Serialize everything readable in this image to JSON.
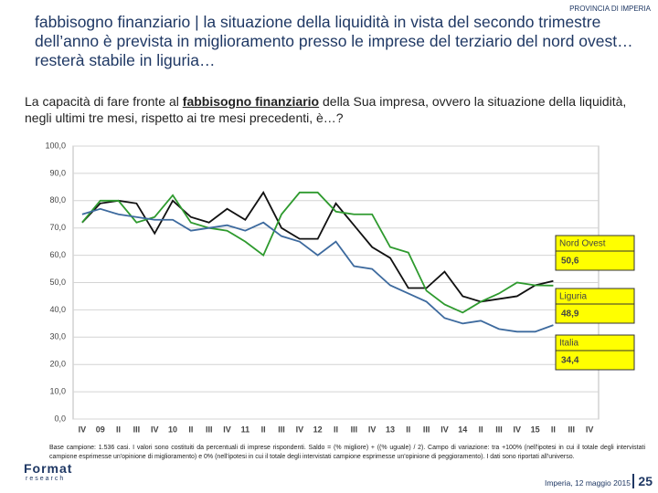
{
  "header": "PROVINCIA DI IMPERIA",
  "title": "fabbisogno finanziario | la situazione della liquidità in vista del secondo trimestre dell’anno è prevista in miglioramento presso le imprese del terziario del nord ovest… resterà stabile in liguria…",
  "question": [
    "La capacità di fare fronte al ",
    "fabbisogno finanziario",
    " della Sua impresa, ovvero la situazione della liquidità, negli ultimi tre mesi, rispetto ai tre mesi precedenti, è…?"
  ],
  "chart_data": {
    "type": "line",
    "categories": [
      "IV",
      "09",
      "II",
      "III",
      "IV",
      "10",
      "II",
      "III",
      "IV",
      "11",
      "II",
      "III",
      "IV",
      "12",
      "II",
      "III",
      "IV",
      "13",
      "II",
      "III",
      "IV",
      "14",
      "II",
      "III",
      "IV",
      "15",
      "II",
      "III",
      "IV"
    ],
    "ylim": [
      0,
      100
    ],
    "yticks": [
      {
        "value": 0,
        "label": "0,0"
      },
      {
        "value": 10,
        "label": "10,0"
      },
      {
        "value": 20,
        "label": "20,0"
      },
      {
        "value": 30,
        "label": "30,0"
      },
      {
        "value": 40,
        "label": "40,0"
      },
      {
        "value": 50,
        "label": "50,0"
      },
      {
        "value": 60,
        "label": "60,0"
      },
      {
        "value": 70,
        "label": "70,0"
      },
      {
        "value": 80,
        "label": "80,0"
      },
      {
        "value": 90,
        "label": "90,0"
      },
      {
        "value": 100,
        "label": "100,0"
      }
    ],
    "grid": true,
    "series": [
      {
        "name": "Nord Ovest",
        "color": "#111111",
        "values": [
          72,
          79,
          80,
          79,
          68,
          80,
          74,
          72,
          77,
          73,
          83,
          70,
          66,
          66,
          79,
          71,
          63,
          59,
          48,
          48,
          54,
          45,
          43,
          44,
          45,
          49,
          50.6,
          null,
          null
        ],
        "value_labels": [
          null,
          null,
          null,
          null,
          null,
          null,
          null,
          null,
          null,
          null,
          null,
          null,
          null,
          null,
          null,
          null,
          null,
          null,
          null,
          null,
          null,
          null,
          null,
          null,
          null,
          null,
          "50,6",
          null,
          null
        ]
      },
      {
        "name": "Liguria",
        "color": "#2e9a2e",
        "values": [
          72,
          80,
          80,
          72,
          74,
          82,
          72,
          70,
          69,
          65,
          60,
          75,
          83,
          83,
          76,
          75,
          75,
          63,
          61,
          47,
          42,
          39,
          43,
          46,
          50,
          49,
          48.9,
          null,
          null
        ],
        "value_labels": [
          null,
          null,
          null,
          null,
          null,
          null,
          null,
          null,
          null,
          null,
          null,
          null,
          null,
          null,
          null,
          null,
          null,
          null,
          null,
          null,
          null,
          null,
          null,
          null,
          null,
          null,
          "48,9",
          null,
          null
        ]
      },
      {
        "name": "Italia",
        "color": "#3d6a9e",
        "values": [
          75,
          77,
          75,
          74,
          73,
          73,
          69,
          70,
          71,
          69,
          72,
          67,
          65,
          60,
          65,
          56,
          55,
          49,
          46,
          43,
          37,
          35,
          36,
          33,
          32,
          32,
          34.4,
          null,
          null
        ],
        "value_labels": [
          null,
          null,
          null,
          null,
          null,
          null,
          null,
          null,
          null,
          null,
          null,
          null,
          null,
          null,
          null,
          null,
          null,
          null,
          null,
          null,
          null,
          null,
          null,
          null,
          null,
          null,
          "34,4",
          null,
          null
        ]
      }
    ]
  },
  "footnote": "Base campione: 1.536 casi. I valori sono costituiti da percentuali di imprese rispondenti. Saldo = (% migliore) + ((% uguale) / 2). Campo di variazione: tra +100% (nell'ipotesi in cui il totale degli intervistati campione esprimesse un'opinione di miglioramento) e 0% (nell'ipotesi in cui il totale degli intervistati campione esprimesse un'opinione di peggioramento). I dati sono riportati all'universo.",
  "footer": {
    "date": "Imperia, 12 maggio 2015",
    "page": "25",
    "logo": [
      "Format",
      "research"
    ]
  }
}
